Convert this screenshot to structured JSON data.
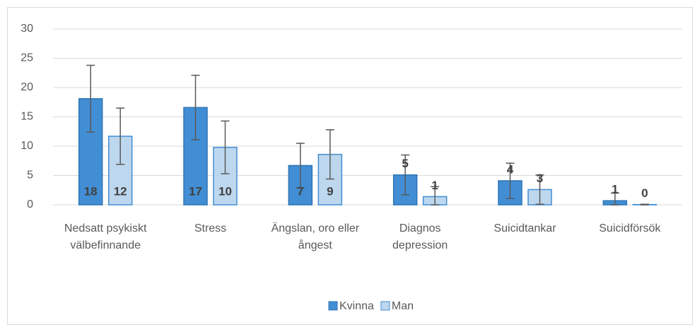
{
  "chart_data": {
    "type": "bar",
    "categories": [
      "Nedsatt psykiskt välbefinnande",
      "Stress",
      "Ängslan, oro eller ångest",
      "Diagnos depression",
      "Suicidtankar",
      "Suicidförsök"
    ],
    "series": [
      {
        "name": "Kvinna",
        "color": "#428ed4",
        "edge": "#2e75b6",
        "values": [
          18.1,
          16.6,
          6.7,
          5.1,
          4.1,
          0.7
        ],
        "value_labels": [
          "18",
          "17",
          "7",
          "5",
          "4",
          "1"
        ],
        "errors": [
          5.7,
          5.5,
          3.8,
          3.4,
          3.0,
          1.3
        ]
      },
      {
        "name": "Man",
        "color": "#bdd7ee",
        "edge": "#428ed4",
        "values": [
          11.7,
          9.8,
          8.6,
          1.4,
          2.6,
          0.05
        ],
        "value_labels": [
          "12",
          "10",
          "9",
          "1",
          "3",
          "0"
        ],
        "errors": [
          4.8,
          4.5,
          4.2,
          1.7,
          2.5,
          0.05
        ]
      }
    ],
    "ylim": [
      0,
      30
    ],
    "yticks": [
      0,
      5,
      10,
      15,
      20,
      25,
      30
    ],
    "grid": true,
    "legend": "bottom"
  }
}
